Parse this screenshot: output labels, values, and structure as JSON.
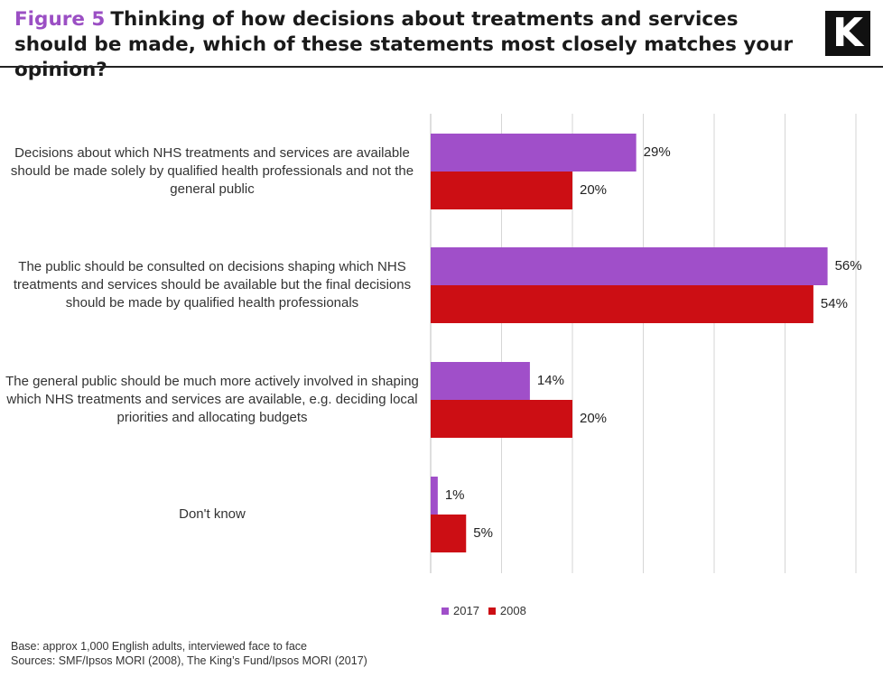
{
  "header": {
    "figure_label": "Figure 5",
    "title": "Thinking of how decisions about treatments and services should be made, which of these statements most closely matches your opinion?",
    "logo_letter": "K"
  },
  "chart_data": {
    "type": "bar",
    "orientation": "horizontal",
    "categories": [
      "Decisions about which NHS treatments and services are available should be made solely by qualified health professionals and not the general public",
      "The public should be consulted on decisions shaping which NHS treatments and services should be available but the final decisions should be made by qualified health professionals",
      "The general public should be much more actively involved in shaping which NHS treatments and services are available, e.g. deciding local priorities and allocating budgets",
      "Don't know"
    ],
    "series": [
      {
        "name": "2017",
        "color": "#a04fc9",
        "values": [
          29,
          56,
          14,
          1
        ],
        "labels": [
          "29%",
          "56%",
          "14%",
          "1%"
        ]
      },
      {
        "name": "2008",
        "color": "#cc0e14",
        "values": [
          20,
          54,
          20,
          5
        ],
        "labels": [
          "20%",
          "54%",
          "20%",
          "5%"
        ]
      }
    ],
    "xlim": [
      0,
      60
    ],
    "grid": true,
    "legend_position": "bottom"
  },
  "footer": {
    "base": "Base: approx 1,000 English adults, interviewed face to face",
    "sources": "Sources: SMF/Ipsos MORI (2008), The King’s Fund/Ipsos MORI (2017)"
  }
}
